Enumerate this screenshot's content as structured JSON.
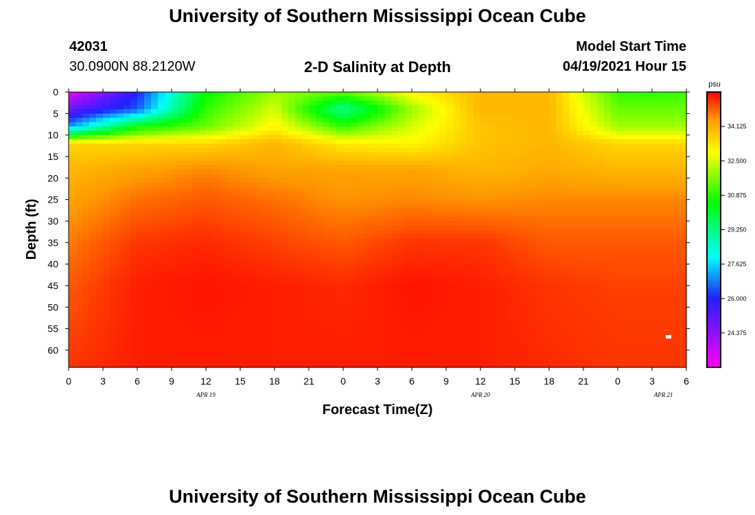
{
  "header": {
    "title": "University of Southern Mississippi Ocean Cube",
    "station_id": "42031",
    "location": "30.0900N  88.2120W",
    "plot_title": "2-D Salinity at Depth",
    "model_label": "Model Start Time",
    "model_time": "04/19/2021 Hour 15",
    "footer_title": "University of Southern Mississippi Ocean Cube"
  },
  "chart_data": {
    "type": "heatmap",
    "title": "2-D Salinity at Depth",
    "xlabel": "Forecast Time(Z)",
    "ylabel": "Depth (ft)",
    "x_hours_range": [
      0,
      54
    ],
    "x_tick_labels": [
      "0",
      "3",
      "6",
      "9",
      "12",
      "15",
      "18",
      "21",
      "0",
      "3",
      "6",
      "9",
      "12",
      "15",
      "18",
      "21",
      "0",
      "3",
      "6"
    ],
    "date_labels": [
      {
        "label": "APR  19",
        "hour": 12
      },
      {
        "label": "APR  20",
        "hour": 36
      },
      {
        "label": "APR  21",
        "hour": 52
      }
    ],
    "ylim": [
      0,
      64
    ],
    "y_ticks": [
      0,
      5,
      10,
      15,
      20,
      25,
      30,
      35,
      40,
      45,
      50,
      55,
      60
    ],
    "colorbar": {
      "unit": "psu",
      "range": [
        22.75,
        35.75
      ],
      "tick_labels": [
        "34.125",
        "32.500",
        "30.875",
        "29.250",
        "27.625",
        "26.000",
        "24.375"
      ],
      "tick_values": [
        34.125,
        32.5,
        30.875,
        29.25,
        27.625,
        26.0,
        24.375
      ],
      "colors": [
        "#ff00ff",
        "#2020ff",
        "#00ffff",
        "#00ff00",
        "#ffff00",
        "#ff9900",
        "#ff0000"
      ]
    },
    "grid_hours": [
      0,
      6,
      12,
      18,
      24,
      30,
      36,
      42,
      48,
      54
    ],
    "grid_depths": [
      0,
      4,
      8,
      12,
      18,
      25,
      35,
      45,
      64
    ],
    "salinity_grid": [
      [
        23.0,
        26.0,
        30.5,
        32.0,
        31.5,
        33.0,
        34.0,
        34.0,
        31.0,
        31.0
      ],
      [
        25.0,
        26.5,
        31.0,
        32.5,
        29.0,
        32.0,
        34.0,
        34.0,
        31.5,
        31.5
      ],
      [
        27.0,
        30.5,
        31.5,
        33.0,
        31.0,
        32.5,
        33.8,
        34.0,
        32.0,
        32.0
      ],
      [
        33.5,
        33.5,
        33.5,
        34.0,
        33.2,
        33.0,
        33.8,
        34.0,
        33.5,
        33.5
      ],
      [
        34.0,
        34.3,
        34.6,
        34.3,
        34.3,
        34.3,
        34.0,
        34.2,
        34.0,
        34.0
      ],
      [
        34.3,
        34.8,
        35.0,
        34.8,
        34.5,
        34.6,
        34.5,
        34.6,
        34.6,
        34.6
      ],
      [
        34.7,
        35.3,
        35.4,
        35.2,
        35.0,
        35.3,
        35.3,
        35.0,
        35.0,
        35.0
      ],
      [
        35.0,
        35.5,
        35.6,
        35.5,
        35.4,
        35.6,
        35.5,
        35.3,
        35.2,
        35.2
      ],
      [
        35.3,
        35.5,
        35.5,
        35.5,
        35.5,
        35.5,
        35.5,
        35.4,
        35.3,
        35.3
      ]
    ]
  }
}
